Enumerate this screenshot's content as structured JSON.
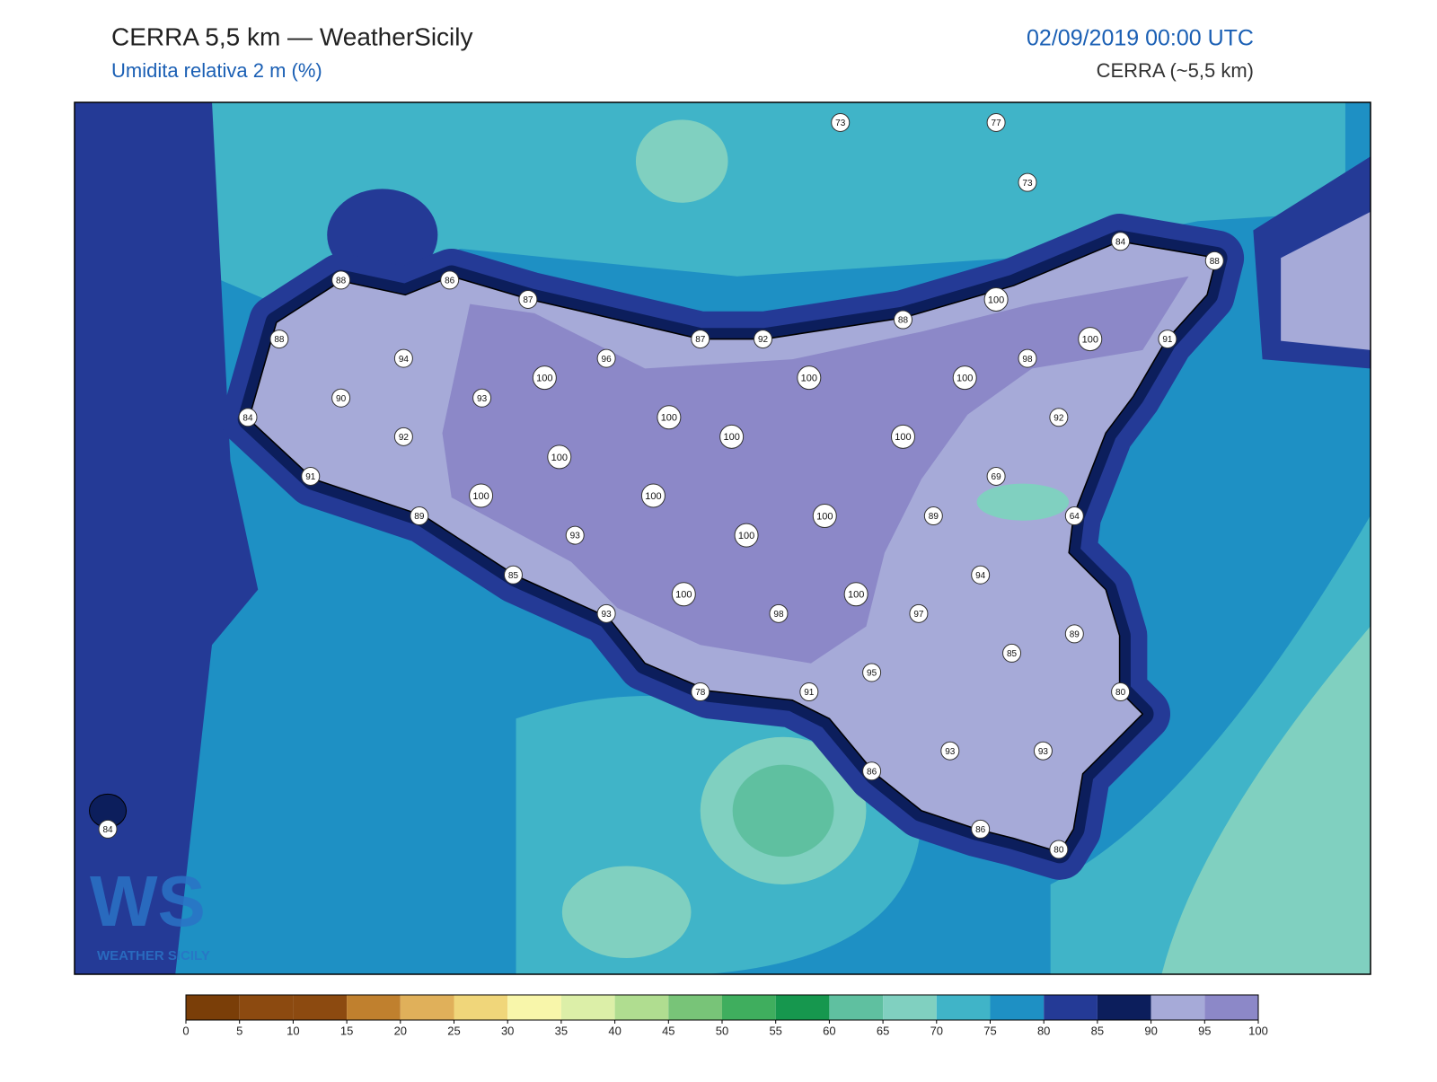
{
  "header": {
    "title": "CERRA 5,5 km — WeatherSicily",
    "subtitle": "Umidita relativa 2 m (%)",
    "date": "02/09/2019 00:00 UTC",
    "model": "CERRA (~5,5 km)"
  },
  "logo": {
    "mark": "WS",
    "name": "WEATHER SICILY"
  },
  "stations": [
    73,
    77,
    73,
    84,
    88,
    88,
    86,
    87,
    100,
    87,
    92,
    88,
    100,
    100,
    91,
    88,
    94,
    96,
    100,
    100,
    98,
    93,
    90,
    84,
    92,
    100,
    100,
    100,
    100,
    92,
    69,
    91,
    100,
    100,
    100,
    89,
    64,
    89,
    93,
    100,
    85,
    94,
    93,
    100,
    98,
    100,
    97,
    89,
    85,
    95,
    78,
    91,
    80,
    86,
    93,
    93,
    86,
    80,
    84
  ],
  "colorbar": {
    "ticks": [
      0,
      5,
      10,
      15,
      20,
      25,
      30,
      35,
      40,
      45,
      50,
      55,
      60,
      65,
      70,
      75,
      80,
      85,
      90,
      95,
      100
    ],
    "colors": [
      "#7a3e08",
      "#8c4a10",
      "#8c4a10",
      "#c0802e",
      "#e0b05a",
      "#f0d67a",
      "#f8f6aa",
      "#dcefa8",
      "#b0dd90",
      "#78c478",
      "#3fae5e",
      "#16974e",
      "#5fc0a0",
      "#80d0c0",
      "#40b4c8",
      "#1e90c4",
      "#243a96",
      "#0c1e5c",
      "#a6aad8",
      "#8c88c8"
    ]
  }
}
